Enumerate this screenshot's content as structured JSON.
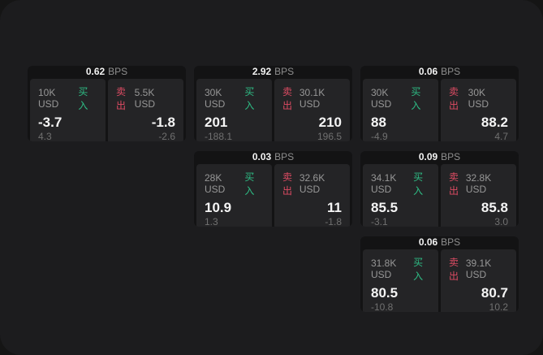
{
  "labels": {
    "buy": "买入",
    "sell": "卖出",
    "bps": "BPS"
  },
  "colors": {
    "buy": "#2ebd85",
    "sell": "#dd4b63",
    "window_bg": "#1c1c1e",
    "panel_bg": "#242426",
    "card_bg": "#131314"
  },
  "cards": [
    {
      "bps": "0.62",
      "buy": {
        "amount": "10K USD",
        "value": "-3.7",
        "sub": "4.3"
      },
      "sell": {
        "amount": "5.5K USD",
        "value": "-1.8",
        "sub": "-2.6"
      }
    },
    {
      "bps": "2.92",
      "buy": {
        "amount": "30K USD",
        "value": "201",
        "sub": "-188.1"
      },
      "sell": {
        "amount": "30.1K USD",
        "value": "210",
        "sub": "196.5"
      }
    },
    {
      "bps": "0.06",
      "buy": {
        "amount": "30K USD",
        "value": "88",
        "sub": "-4.9"
      },
      "sell": {
        "amount": "30K USD",
        "value": "88.2",
        "sub": "4.7"
      }
    },
    {
      "bps": "0.03",
      "buy": {
        "amount": "28K USD",
        "value": "10.9",
        "sub": "1.3"
      },
      "sell": {
        "amount": "32.6K USD",
        "value": "11",
        "sub": "-1.8"
      }
    },
    {
      "bps": "0.09",
      "buy": {
        "amount": "34.1K USD",
        "value": "85.5",
        "sub": "-3.1"
      },
      "sell": {
        "amount": "32.8K USD",
        "value": "85.8",
        "sub": "3.0"
      }
    },
    {
      "bps": "0.06",
      "buy": {
        "amount": "31.8K USD",
        "value": "80.5",
        "sub": "-10.8"
      },
      "sell": {
        "amount": "39.1K USD",
        "value": "80.7",
        "sub": "10.2"
      }
    }
  ]
}
